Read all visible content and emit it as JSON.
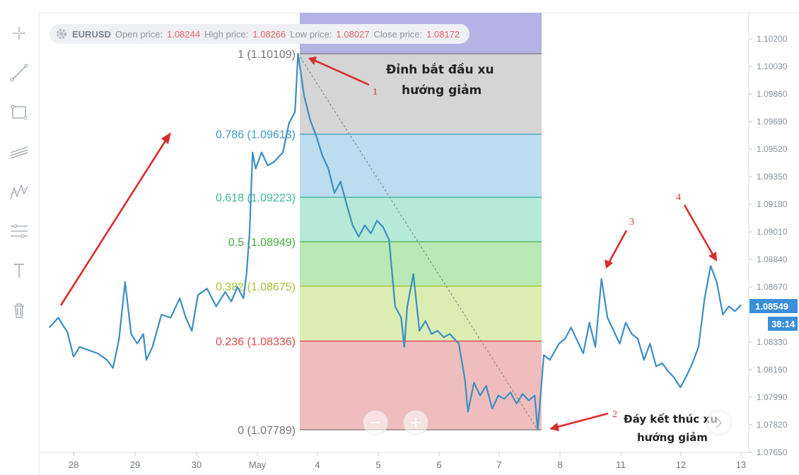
{
  "legend": {
    "symbol": "EURUSD",
    "open_label": "Open price:",
    "open": "1.08244",
    "high_label": "High price:",
    "high": "1.08266",
    "low_label": "Low price:",
    "low": "1.08027",
    "close_label": "Close price:",
    "close": "1.08172"
  },
  "price_badge": {
    "price": "1.08549",
    "timer": "38:14",
    "color": "#3a8fd8"
  },
  "annotations": {
    "top_text_line1": "Đỉnh bắt đầu xu",
    "top_text_line2": "hướng giảm",
    "bottom_text_line1": "Đáy kết thúc  xu",
    "bottom_text_line2": "hướng giảm",
    "numbers": [
      "1",
      "2",
      "3",
      "4"
    ],
    "arrow_color": "#d92c2c"
  },
  "toolbar": {
    "icons": [
      "crosshair-icon",
      "trend-line-icon",
      "rectangle-icon",
      "parallel-channel-icon",
      "pattern-icon",
      "fib-tool-icon",
      "text-icon",
      "trash-icon"
    ]
  },
  "chart_data": {
    "type": "line",
    "title": "",
    "xlabel": "",
    "ylabel": "",
    "x_ticks": [
      "28",
      "29",
      "30",
      "May",
      "4",
      "5",
      "6",
      "7",
      "8",
      "11",
      "12",
      "13"
    ],
    "y_ticks": [
      "1.10200",
      "1.10030",
      "1.09860",
      "1.09690",
      "1.09520",
      "1.09350",
      "1.09180",
      "1.09010",
      "1.08840",
      "1.08670",
      "1.08330",
      "1.08160",
      "1.07990",
      "1.07820",
      "1.07650"
    ],
    "ylim": [
      1.0765,
      1.1028
    ],
    "line_color": "#3b8ec2",
    "fibonacci": {
      "levels": [
        {
          "label": "1 (1.10109)",
          "ratio": 1,
          "price": 1.10109,
          "color": "#777777",
          "fill": "#d5d5d5"
        },
        {
          "label": "0.786 (1.09613)",
          "ratio": 0.786,
          "price": 1.09613,
          "color": "#3f9ac8",
          "fill": "#bcdcef"
        },
        {
          "label": "0.618 (1.09223)",
          "ratio": 0.618,
          "price": 1.09223,
          "color": "#42b59a",
          "fill": "#b6ead8"
        },
        {
          "label": "0.5 (1.08949)",
          "ratio": 0.5,
          "price": 1.08949,
          "color": "#44ad44",
          "fill": "#b8e8b4"
        },
        {
          "label": "0.382 (1.08675)",
          "ratio": 0.382,
          "price": 1.08675,
          "color": "#a3c22f",
          "fill": "#dcedb4"
        },
        {
          "label": "0.236 (1.08336)",
          "ratio": 0.236,
          "price": 1.08336,
          "color": "#d94a4a",
          "fill": "#efbdbd"
        },
        {
          "label": "0 (1.07789)",
          "ratio": 0,
          "price": 1.07789,
          "color": "#777777",
          "fill": ""
        }
      ],
      "top_fill": "#b5b2e6"
    },
    "series": [
      {
        "values": [
          [
            27.6,
            1.0842
          ],
          [
            27.75,
            1.0848
          ],
          [
            27.9,
            1.0839
          ],
          [
            28.0,
            1.0824
          ],
          [
            28.1,
            1.083
          ],
          [
            28.25,
            1.0828
          ],
          [
            28.4,
            1.0826
          ],
          [
            28.55,
            1.0822
          ],
          [
            28.65,
            1.0817
          ],
          [
            28.75,
            1.0835
          ],
          [
            28.85,
            1.087
          ],
          [
            28.95,
            1.0838
          ],
          [
            29.05,
            1.0832
          ],
          [
            29.15,
            1.0838
          ],
          [
            29.2,
            1.0822
          ],
          [
            29.3,
            1.083
          ],
          [
            29.45,
            1.085
          ],
          [
            29.6,
            1.0848
          ],
          [
            29.75,
            1.086
          ],
          [
            29.85,
            1.0848
          ],
          [
            29.95,
            1.084
          ],
          [
            30.05,
            1.0862
          ],
          [
            30.2,
            1.0866
          ],
          [
            30.35,
            1.0855
          ],
          [
            30.5,
            1.0864
          ],
          [
            30.6,
            1.0858
          ],
          [
            30.7,
            1.0867
          ],
          [
            30.8,
            1.086
          ],
          [
            30.85,
            1.0875
          ],
          [
            30.9,
            1.09
          ],
          [
            30.95,
            1.095
          ],
          [
            31.0,
            1.094
          ],
          [
            31.1,
            1.095
          ],
          [
            31.2,
            1.0942
          ],
          [
            31.3,
            1.0944
          ],
          [
            31.45,
            1.095
          ],
          [
            31.55,
            1.0968
          ],
          [
            31.65,
            1.0975
          ],
          [
            31.7,
            1.10109
          ],
          [
            31.8,
            1.0985
          ],
          [
            31.9,
            1.097
          ],
          [
            32.0,
            1.096
          ],
          [
            32.1,
            1.0948
          ],
          [
            32.2,
            1.094
          ],
          [
            32.3,
            1.0925
          ],
          [
            32.4,
            1.0932
          ],
          [
            32.5,
            1.0918
          ],
          [
            32.6,
            1.0905
          ],
          [
            32.7,
            1.0898
          ],
          [
            32.8,
            1.0905
          ],
          [
            32.9,
            1.09
          ],
          [
            33.0,
            1.0908
          ],
          [
            33.1,
            1.0904
          ],
          [
            33.2,
            1.0896
          ],
          [
            33.3,
            1.0855
          ],
          [
            33.4,
            1.0848
          ],
          [
            33.45,
            1.083
          ],
          [
            33.5,
            1.0855
          ],
          [
            33.6,
            1.0875
          ],
          [
            33.7,
            1.084
          ],
          [
            33.8,
            1.0846
          ],
          [
            33.9,
            1.0838
          ],
          [
            34.0,
            1.084
          ],
          [
            34.1,
            1.0836
          ],
          [
            34.2,
            1.0838
          ],
          [
            34.35,
            1.0832
          ],
          [
            34.45,
            1.081
          ],
          [
            34.5,
            1.079
          ],
          [
            34.6,
            1.0808
          ],
          [
            34.7,
            1.08
          ],
          [
            34.8,
            1.0806
          ],
          [
            34.9,
            1.0792
          ],
          [
            35.0,
            1.08
          ],
          [
            35.1,
            1.0798
          ],
          [
            35.2,
            1.0802
          ],
          [
            35.3,
            1.0795
          ],
          [
            35.4,
            1.0801
          ],
          [
            35.5,
            1.0797
          ],
          [
            35.6,
            1.08
          ],
          [
            35.65,
            1.07789
          ],
          [
            35.75,
            1.0825
          ],
          [
            35.85,
            1.0822
          ],
          [
            36.0,
            1.0832
          ],
          [
            36.1,
            1.0835
          ],
          [
            36.2,
            1.0842
          ],
          [
            36.3,
            1.0834
          ],
          [
            36.4,
            1.0826
          ],
          [
            36.5,
            1.0845
          ],
          [
            36.6,
            1.083
          ],
          [
            36.7,
            1.0872
          ],
          [
            36.8,
            1.0848
          ],
          [
            36.9,
            1.084
          ],
          [
            37.0,
            1.0832
          ],
          [
            37.1,
            1.0845
          ],
          [
            37.2,
            1.0838
          ],
          [
            37.3,
            1.0835
          ],
          [
            37.4,
            1.0822
          ],
          [
            37.5,
            1.0832
          ],
          [
            37.6,
            1.0818
          ],
          [
            37.7,
            1.082
          ],
          [
            37.8,
            1.0815
          ],
          [
            37.9,
            1.0811
          ],
          [
            38.0,
            1.0805
          ],
          [
            38.1,
            1.0812
          ],
          [
            38.2,
            1.082
          ],
          [
            38.3,
            1.083
          ],
          [
            38.4,
            1.086
          ],
          [
            38.5,
            1.088
          ],
          [
            38.6,
            1.087
          ],
          [
            38.7,
            1.085
          ],
          [
            38.8,
            1.0855
          ],
          [
            38.9,
            1.0852
          ],
          [
            39.0,
            1.0856
          ]
        ]
      }
    ]
  }
}
